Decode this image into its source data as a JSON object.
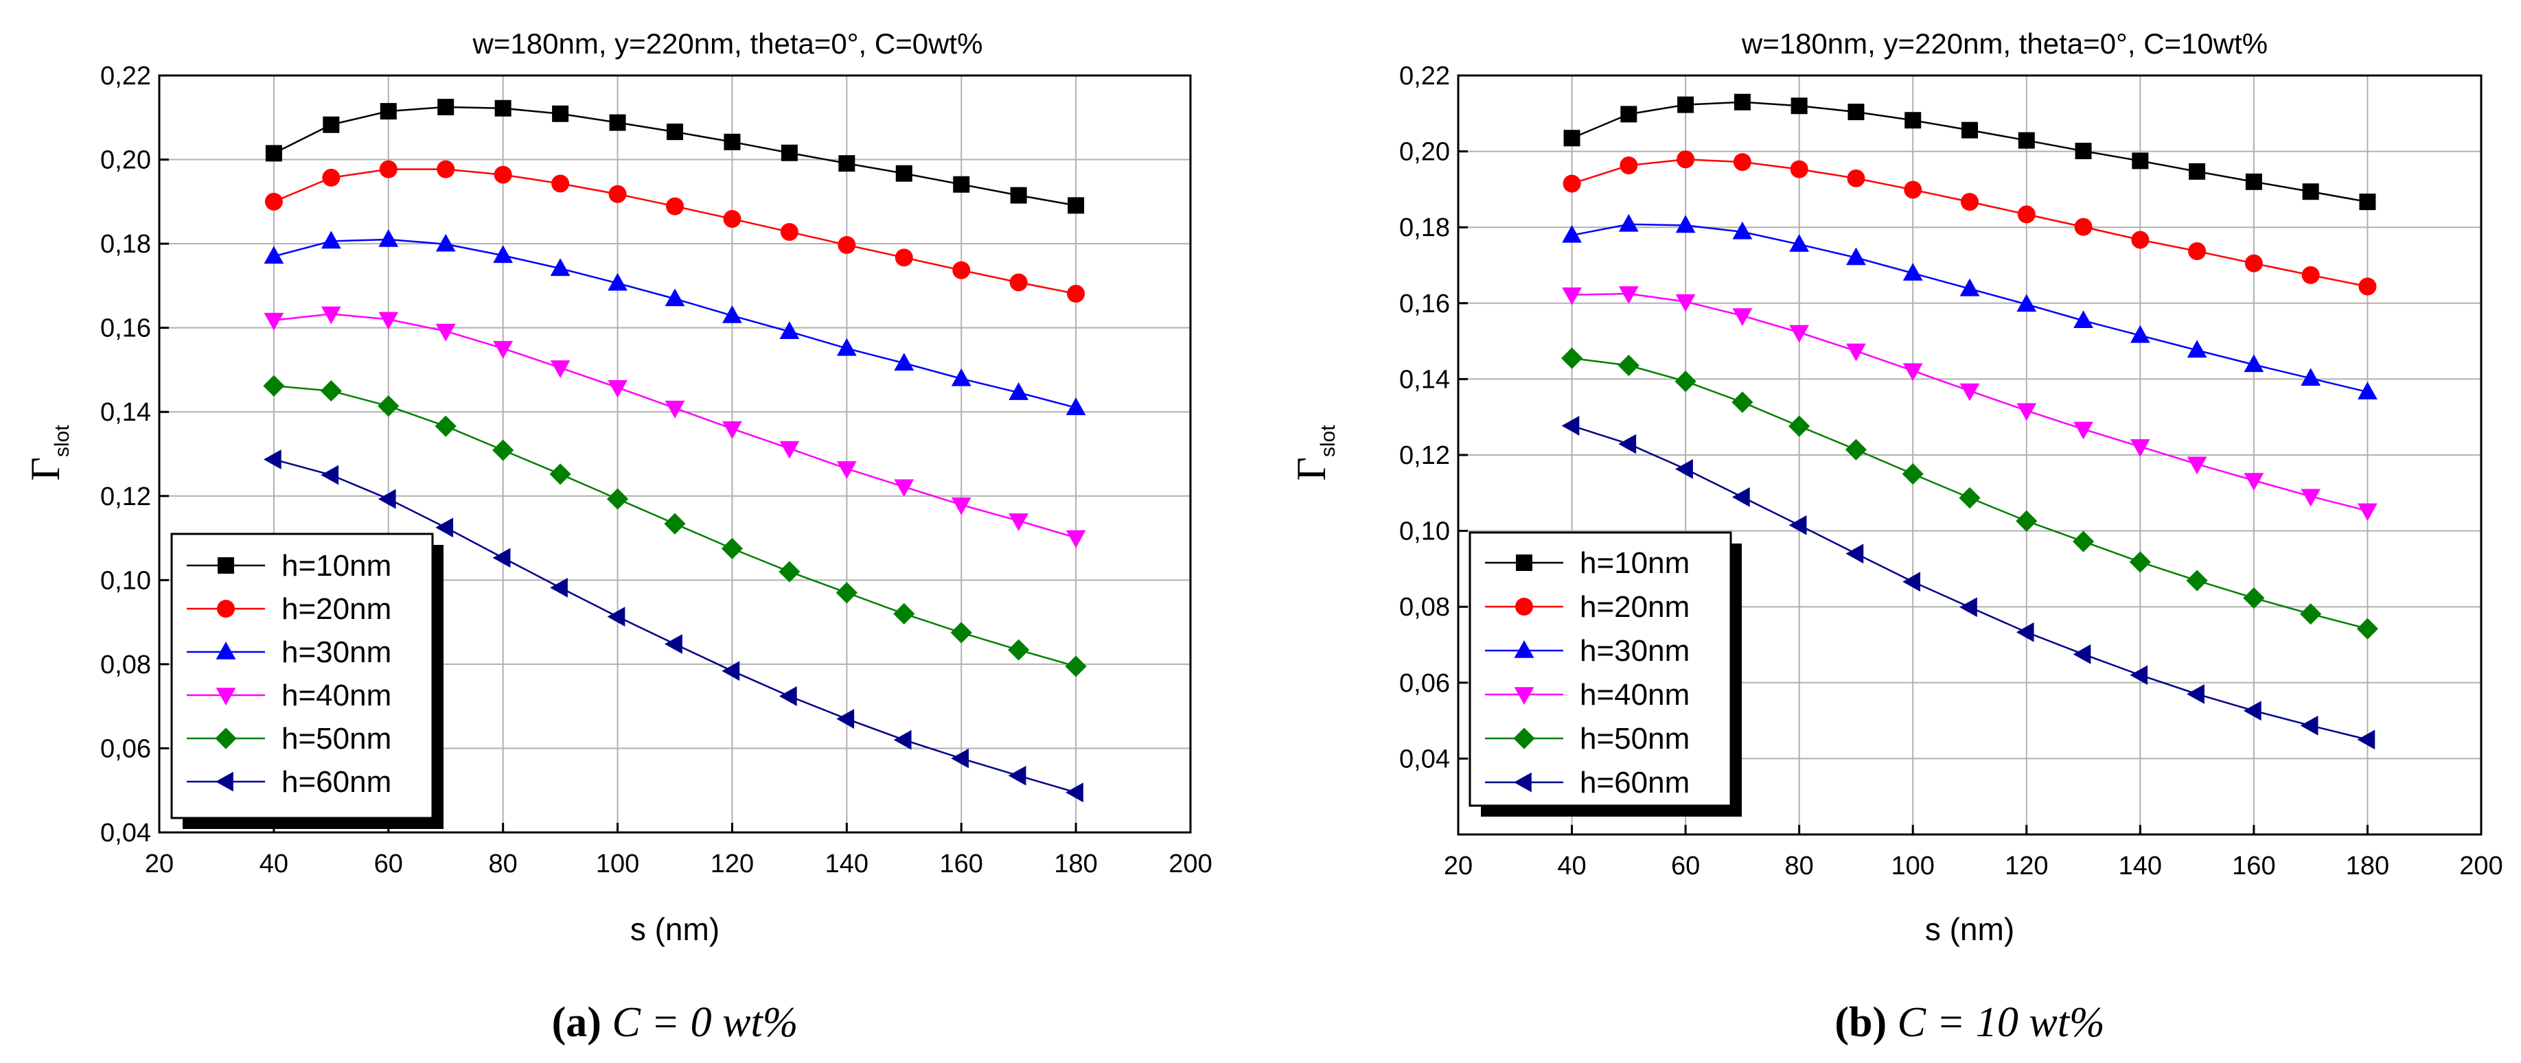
{
  "chart_data": [
    {
      "type": "line",
      "title": "w=180nm, y=220nm, theta=0°, C=0wt%",
      "xlabel": "s (nm)",
      "ylabel": "Γ",
      "ylabel_sub": "slot",
      "xlim": [
        20,
        200
      ],
      "ylim": [
        0.04,
        0.22
      ],
      "xticks": [
        20,
        40,
        60,
        80,
        100,
        120,
        140,
        160,
        180,
        200
      ],
      "yticks": [
        0.04,
        0.06,
        0.08,
        0.1,
        0.12,
        0.14,
        0.16,
        0.18,
        0.2,
        0.22
      ],
      "ytick_labels": [
        "0,04",
        "0,06",
        "0,08",
        "0,10",
        "0,12",
        "0,14",
        "0,16",
        "0,18",
        "0,20",
        "0,22"
      ],
      "grid": true,
      "legend_position": "bottom-left",
      "x": [
        40,
        50,
        60,
        70,
        80,
        90,
        100,
        110,
        120,
        130,
        140,
        150,
        160,
        170,
        180
      ],
      "series": [
        {
          "name": "h=10nm",
          "color": "#000000",
          "marker": "square",
          "values": [
            0.2015,
            0.2083,
            0.2115,
            0.2125,
            0.2122,
            0.2109,
            0.2088,
            0.2066,
            0.2042,
            0.2016,
            0.1991,
            0.1967,
            0.1941,
            0.1915,
            0.1891
          ]
        },
        {
          "name": "h=20nm",
          "color": "#ff0000",
          "marker": "circle",
          "values": [
            0.19,
            0.1957,
            0.1977,
            0.1977,
            0.1964,
            0.1943,
            0.1918,
            0.1889,
            0.1859,
            0.1828,
            0.1797,
            0.1767,
            0.1737,
            0.1708,
            0.1681
          ]
        },
        {
          "name": "h=30nm",
          "color": "#0000ff",
          "marker": "triangle-up",
          "values": [
            0.177,
            0.1806,
            0.181,
            0.1799,
            0.1772,
            0.1741,
            0.1706,
            0.1669,
            0.1629,
            0.1591,
            0.1551,
            0.1516,
            0.1479,
            0.1446,
            0.141
          ]
        },
        {
          "name": "h=40nm",
          "color": "#ff00ff",
          "marker": "triangle-down",
          "values": [
            0.1618,
            0.1633,
            0.162,
            0.1592,
            0.1551,
            0.1505,
            0.1458,
            0.1409,
            0.136,
            0.1313,
            0.1265,
            0.1222,
            0.1179,
            0.1141,
            0.1101
          ]
        },
        {
          "name": "h=50nm",
          "color": "#008000",
          "marker": "diamond",
          "values": [
            0.1462,
            0.145,
            0.1414,
            0.1366,
            0.1309,
            0.1252,
            0.1193,
            0.1134,
            0.1075,
            0.102,
            0.097,
            0.092,
            0.0875,
            0.0834,
            0.0795
          ]
        },
        {
          "name": "h=60nm",
          "color": "#00008b",
          "marker": "triangle-left",
          "values": [
            0.1287,
            0.125,
            0.1193,
            0.1125,
            0.1053,
            0.0982,
            0.0913,
            0.0848,
            0.0784,
            0.0724,
            0.067,
            0.062,
            0.0576,
            0.0535,
            0.0495
          ]
        }
      ]
    },
    {
      "type": "line",
      "title": "w=180nm, y=220nm, theta=0°, C=10wt%",
      "xlabel": "s (nm)",
      "ylabel": "Γ",
      "ylabel_sub": "slot",
      "xlim": [
        20,
        200
      ],
      "ylim": [
        0.02,
        0.22
      ],
      "xticks": [
        20,
        40,
        60,
        80,
        100,
        120,
        140,
        160,
        180,
        200
      ],
      "yticks": [
        0.04,
        0.06,
        0.08,
        0.1,
        0.12,
        0.14,
        0.16,
        0.18,
        0.2,
        0.22
      ],
      "ytick_labels": [
        "0,04",
        "0,06",
        "0,08",
        "0,10",
        "0,12",
        "0,14",
        "0,16",
        "0,18",
        "0,20",
        "0,22"
      ],
      "grid": true,
      "legend_position": "bottom-left",
      "x": [
        40,
        50,
        60,
        70,
        80,
        90,
        100,
        110,
        120,
        130,
        140,
        150,
        160,
        170,
        180
      ],
      "series": [
        {
          "name": "h=10nm",
          "color": "#000000",
          "marker": "square",
          "values": [
            0.2035,
            0.2098,
            0.2123,
            0.213,
            0.212,
            0.2104,
            0.2082,
            0.2056,
            0.2029,
            0.2001,
            0.1975,
            0.1947,
            0.192,
            0.1894,
            0.1867
          ]
        },
        {
          "name": "h=20nm",
          "color": "#ff0000",
          "marker": "circle",
          "values": [
            0.1915,
            0.1963,
            0.1979,
            0.1972,
            0.1953,
            0.1929,
            0.1899,
            0.1867,
            0.1834,
            0.1801,
            0.1767,
            0.1737,
            0.1705,
            0.1674,
            0.1644
          ]
        },
        {
          "name": "h=30nm",
          "color": "#0000ff",
          "marker": "triangle-up",
          "values": [
            0.1779,
            0.1808,
            0.1805,
            0.1788,
            0.1755,
            0.172,
            0.1679,
            0.1638,
            0.1597,
            0.1554,
            0.1515,
            0.1476,
            0.1438,
            0.1402,
            0.1366
          ]
        },
        {
          "name": "h=40nm",
          "color": "#ff00ff",
          "marker": "triangle-down",
          "values": [
            0.1622,
            0.1625,
            0.1604,
            0.1567,
            0.1523,
            0.1474,
            0.1422,
            0.1369,
            0.1317,
            0.1268,
            0.1222,
            0.1176,
            0.1133,
            0.1091,
            0.1053
          ]
        },
        {
          "name": "h=50nm",
          "color": "#008000",
          "marker": "diamond",
          "values": [
            0.1455,
            0.1436,
            0.1394,
            0.1339,
            0.1276,
            0.1214,
            0.115,
            0.1087,
            0.1026,
            0.0972,
            0.0918,
            0.0869,
            0.0823,
            0.0781,
            0.0742
          ]
        },
        {
          "name": "h=60nm",
          "color": "#00008b",
          "marker": "triangle-left",
          "values": [
            0.1277,
            0.1229,
            0.1163,
            0.1089,
            0.1015,
            0.094,
            0.0866,
            0.0799,
            0.0733,
            0.0675,
            0.062,
            0.057,
            0.0526,
            0.0487,
            0.045
          ]
        }
      ]
    }
  ],
  "captions": [
    {
      "label": "(a)",
      "text": "C = 0 wt%"
    },
    {
      "label": "(b)",
      "text": "C = 10 wt%"
    }
  ]
}
